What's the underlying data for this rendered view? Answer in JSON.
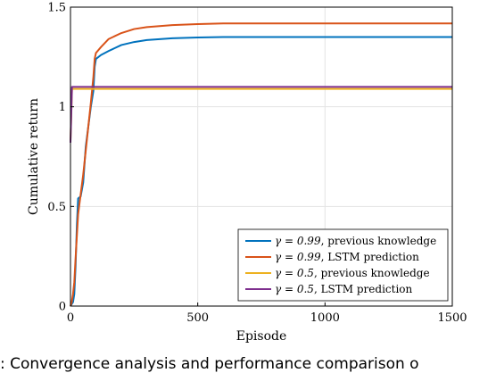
{
  "chart_data": {
    "type": "line",
    "xlabel": "Episode",
    "ylabel": "Cumulative return",
    "xlim": [
      0,
      1500
    ],
    "ylim": [
      0,
      1.5
    ],
    "xticks": [
      0,
      500,
      1000,
      1500
    ],
    "xtick_labels": [
      "0",
      "500",
      "1000",
      "1500"
    ],
    "yticks": [
      0,
      0.5,
      1,
      1.5
    ],
    "ytick_labels": [
      "0",
      "0.5",
      "1",
      "1.5"
    ],
    "grid": true,
    "legend_position": "bottom-right",
    "series": [
      {
        "name": "γ = 0.99, previous knowledge",
        "legend_math": "γ = 0.99",
        "legend_text": ", previous knowledge",
        "color": "#0072BD",
        "x": [
          0,
          5,
          10,
          15,
          20,
          25,
          30,
          40,
          50,
          60,
          70,
          80,
          90,
          95,
          100,
          120,
          150,
          200,
          250,
          300,
          400,
          500,
          600,
          800,
          1000,
          1200,
          1500
        ],
        "y": [
          0,
          0.01,
          0.02,
          0.06,
          0.2,
          0.4,
          0.54,
          0.55,
          0.62,
          0.8,
          0.9,
          1.0,
          1.08,
          1.2,
          1.24,
          1.26,
          1.28,
          1.31,
          1.325,
          1.335,
          1.344,
          1.348,
          1.35,
          1.35,
          1.35,
          1.35,
          1.35
        ]
      },
      {
        "name": "γ = 0.99, LSTM prediction",
        "legend_math": "γ = 0.99",
        "legend_text": ", LSTM prediction",
        "color": "#D95319",
        "x": [
          0,
          5,
          10,
          15,
          20,
          30,
          40,
          50,
          60,
          70,
          80,
          90,
          95,
          100,
          120,
          150,
          200,
          250,
          300,
          400,
          500,
          600,
          800,
          1000,
          1200,
          1500
        ],
        "y": [
          0,
          0.02,
          0.06,
          0.12,
          0.24,
          0.46,
          0.56,
          0.66,
          0.78,
          0.9,
          1.02,
          1.15,
          1.24,
          1.27,
          1.3,
          1.34,
          1.37,
          1.39,
          1.4,
          1.41,
          1.415,
          1.418,
          1.418,
          1.418,
          1.418,
          1.418
        ]
      },
      {
        "name": "γ = 0.5, previous knowledge",
        "legend_math": "γ = 0.5",
        "legend_text": ", previous knowledge",
        "color": "#EDB120",
        "x": [
          0,
          3,
          6,
          10,
          20,
          100,
          500,
          1000,
          1500
        ],
        "y": [
          0.83,
          0.95,
          1.09,
          1.09,
          1.09,
          1.09,
          1.09,
          1.09,
          1.09
        ]
      },
      {
        "name": "γ = 0.5, LSTM prediction",
        "legend_math": "γ = 0.5",
        "legend_text": ", LSTM prediction",
        "color": "#7E2F8E",
        "x": [
          0,
          3,
          6,
          10,
          20,
          100,
          500,
          1000,
          1500
        ],
        "y": [
          0.82,
          0.96,
          1.1,
          1.1,
          1.1,
          1.1,
          1.1,
          1.1,
          1.1
        ]
      }
    ]
  },
  "caption": {
    "text": ": Convergence analysis and performance comparison o"
  }
}
